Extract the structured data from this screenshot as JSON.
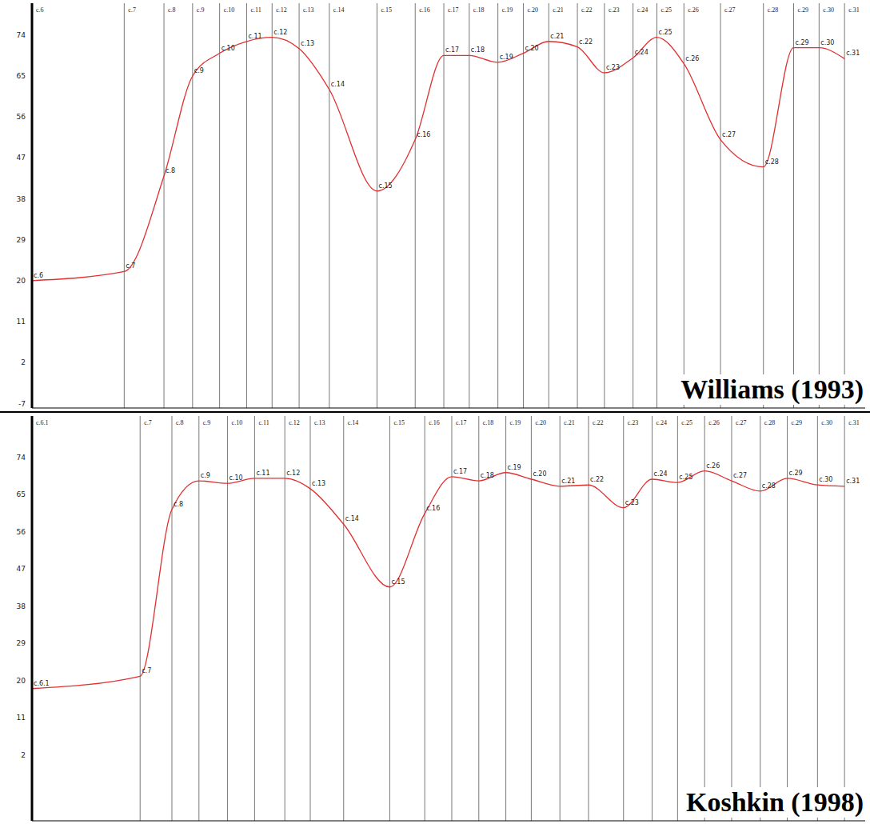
{
  "chart_data": [
    {
      "type": "line",
      "annotation": "Williams (1993)",
      "color": "#e03030",
      "tick_labels": "y",
      "categories": [
        "c.6",
        "c.7",
        "c.8",
        "c.9",
        "c.10",
        "c.11",
        "c.12",
        "c.13",
        "c.14",
        "c.15",
        "c.16",
        "c.17",
        "c.18",
        "c.19",
        "c.20",
        "c.21",
        "c.22",
        "c.23",
        "c.24",
        "c.25",
        "c.26",
        "c.27",
        "c.28",
        "c.29",
        "c.30",
        "c.31"
      ],
      "x": [
        0,
        5.8,
        8.3,
        10.1,
        11.8,
        13.5,
        15.1,
        16.8,
        18.7,
        21.7,
        24.1,
        25.9,
        27.5,
        29.3,
        30.9,
        32.5,
        34.3,
        36.0,
        37.8,
        39.3,
        41.0,
        43.3,
        46.0,
        47.9,
        49.5,
        51.1
      ],
      "values": [
        20,
        22,
        43,
        65,
        70,
        72.6,
        73.5,
        71,
        62,
        39.7,
        51,
        69.5,
        69.5,
        68,
        70,
        72.6,
        71.4,
        65.7,
        69,
        73.5,
        67.7,
        51,
        45,
        71.2,
        71.2,
        68.8
      ],
      "xlim": [
        0,
        52.4
      ],
      "ylim": [
        -8,
        81
      ],
      "yticks": [
        -7,
        2,
        11,
        20,
        29,
        38,
        47,
        56,
        65,
        74
      ]
    },
    {
      "type": "line",
      "annotation": "Koshkin (1998)",
      "color": "#e03030",
      "tick_labels": "y",
      "categories": [
        "c.6.1",
        "c.7",
        "c.8",
        "c.9",
        "c.10",
        "c.11",
        "c.12",
        "c.13",
        "c.14",
        "c.15",
        "c.16",
        "c.17",
        "c.18",
        "c.19",
        "c.20",
        "c.21",
        "c.22",
        "c.23",
        "c.24",
        "c.25",
        "c.26",
        "c.27",
        "c.28",
        "c.29",
        "c.30",
        "c.31"
      ],
      "x": [
        0,
        6.8,
        8.8,
        10.5,
        12.3,
        14.0,
        15.9,
        17.5,
        19.6,
        22.5,
        24.7,
        26.4,
        28.1,
        29.8,
        31.4,
        33.2,
        35.0,
        37.2,
        39.0,
        40.6,
        42.3,
        44.0,
        45.8,
        47.5,
        49.4,
        51.1
      ],
      "values": [
        18,
        21,
        61.4,
        68.3,
        67.7,
        68.9,
        68.9,
        66.4,
        57.8,
        42.6,
        60.4,
        69.3,
        68.3,
        70.3,
        68.7,
        67,
        67.3,
        61.8,
        68.7,
        67.9,
        70.7,
        68.3,
        65.8,
        68.9,
        67.3,
        67
      ],
      "xlim": [
        0,
        52.4
      ],
      "ylim": [
        -14,
        84
      ],
      "yticks": [
        2,
        11,
        20,
        29,
        38,
        47,
        56,
        65,
        74
      ]
    }
  ]
}
